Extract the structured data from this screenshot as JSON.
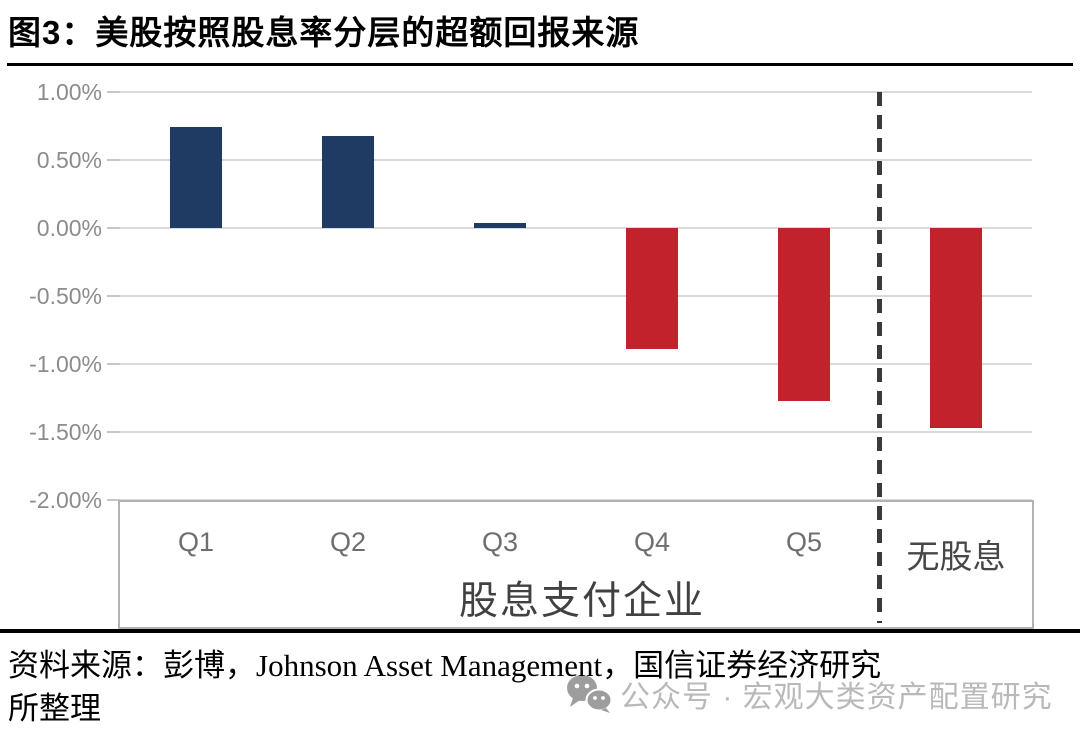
{
  "header": {
    "title": "图3：美股按照股息率分层的超额回报来源"
  },
  "chart_data": {
    "type": "bar",
    "title": "图3：美股按照股息率分层的超额回报来源",
    "categories": [
      "Q1",
      "Q2",
      "Q3",
      "Q4",
      "Q5",
      "无股息"
    ],
    "values": [
      0.74,
      0.68,
      0.04,
      -0.89,
      -1.27,
      -1.47
    ],
    "unit": "%",
    "ylim": [
      -2.0,
      1.0
    ],
    "ytick_labels": [
      "1.00%",
      "0.50%",
      "0.00%",
      "-0.50%",
      "-1.00%",
      "-1.50%",
      "-2.00%"
    ],
    "xlabel": "",
    "ylabel": "",
    "group_label": "股息支付企业",
    "group_span": 5,
    "separator": {
      "type": "dashed-vertical-line",
      "after_category": "Q5"
    },
    "legend": "none",
    "grid": "horizontal",
    "colors": {
      "positive_bar": "#1f3a63",
      "negative_bar": "#c2222c",
      "gridline": "#d9d9d9",
      "tick": "#c6c6c6",
      "dashed_line": "#3a3a3a"
    }
  },
  "footer": {
    "source_line1": "资料来源：彭博，Johnson Asset Management，国信证券经济研究",
    "source_line2": "所整理",
    "watermark": {
      "icon": "wechat-icon",
      "text": "公众号 · 宏观大类资产配置研究"
    }
  }
}
